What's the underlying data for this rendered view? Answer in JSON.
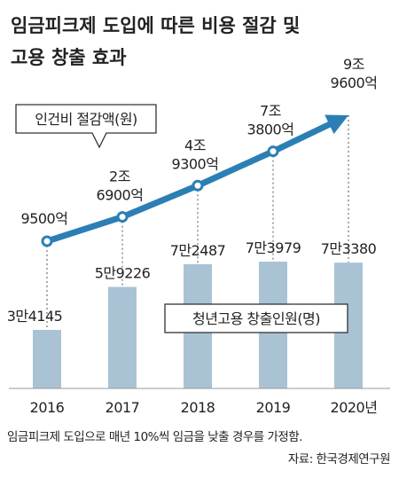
{
  "title": [
    "임금피크제 도입에 따른 비용 절감 및",
    "고용 창출 효과"
  ],
  "chart_data": {
    "type": "bar-line",
    "categories": [
      "2016",
      "2017",
      "2018",
      "2019",
      "2020년"
    ],
    "series": [
      {
        "name": "청년고용 창출인원(명)",
        "type": "bar",
        "color": "#a9c3d5",
        "values": [
          34145,
          59226,
          72487,
          73979,
          73380
        ],
        "value_labels": [
          "3만4145",
          "5만9226",
          "7만2487",
          "7만3979",
          "7만3380"
        ]
      },
      {
        "name": "인건비 절감액(원)",
        "type": "line",
        "color": "#2c7fb4",
        "values": [
          9500,
          26900,
          49300,
          73800,
          99600
        ],
        "value_labels": [
          [
            "9500억"
          ],
          [
            "2조",
            "6900억"
          ],
          [
            "4조",
            "9300억"
          ],
          [
            "7조",
            "3800억"
          ],
          [
            "9조",
            "9600억"
          ]
        ]
      }
    ]
  },
  "footnote": "임금피크제 도입으로 매년 10%씩 임금을 낮출 경우를 가정함.",
  "source": "자료: 한국경제연구원"
}
